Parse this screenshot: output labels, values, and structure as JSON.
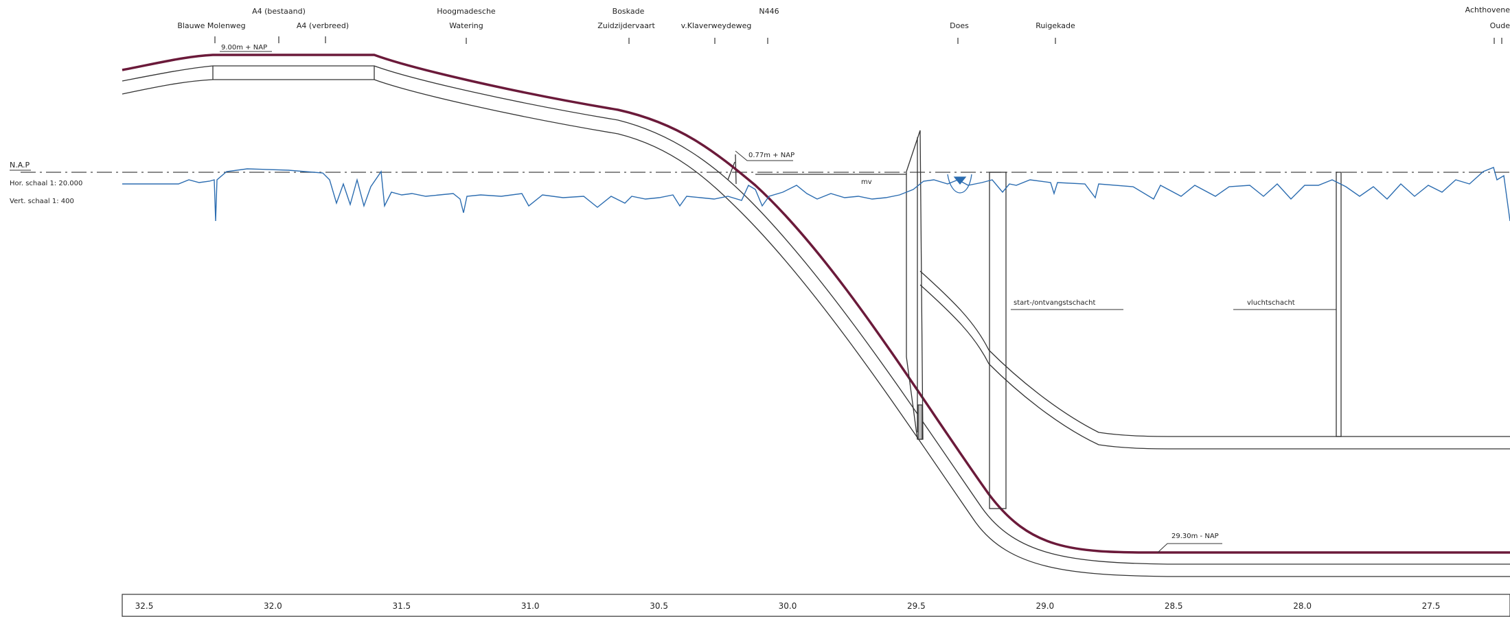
{
  "legend": {
    "nap": "N.A.P",
    "hor_scale": "Hor. schaal 1: 20.000",
    "vert_scale": "Vert. schaal 1:  400"
  },
  "locations": [
    {
      "id": "blauwe-molenweg",
      "label": "Blauwe Molenweg"
    },
    {
      "id": "a4-bestaand",
      "label": "A4 (bestaand)"
    },
    {
      "id": "a4-verbreed",
      "label": "A4 (verbreed)"
    },
    {
      "id": "hoogmadesche-watering",
      "line1": "Hoogmadesche",
      "line2": "Watering"
    },
    {
      "id": "boskade-zuidzijdervaart",
      "line1": "Boskade",
      "line2": "Zuidzijdervaart"
    },
    {
      "id": "v-klaverweydeweg",
      "label": "v.Klaverweydeweg"
    },
    {
      "id": "n446",
      "label": "N446"
    },
    {
      "id": "does",
      "label": "Does"
    },
    {
      "id": "ruigekade",
      "label": "Ruigekade"
    },
    {
      "id": "achthovene",
      "label": "Achthovene"
    },
    {
      "id": "oude",
      "label": "Oude"
    }
  ],
  "annotations": {
    "top_level": "9.00m + NAP",
    "mid_level": "0.77m + NAP",
    "mv": "mv",
    "bottom_level": "29.30m - NAP",
    "start_shaft": "start-/ontvangstschacht",
    "escape_shaft": "vluchtschacht"
  },
  "axis": {
    "ticks": [
      "32.5",
      "32.0",
      "31.5",
      "31.0",
      "30.5",
      "30.0",
      "29.5",
      "29.0",
      "28.5",
      "28.0",
      "27.5"
    ]
  },
  "colors": {
    "alignment": "#6b1a3a",
    "ground": "#2b6cb0",
    "structure": "#333333"
  }
}
